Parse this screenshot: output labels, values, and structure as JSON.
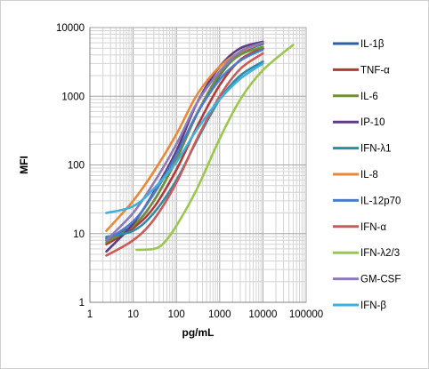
{
  "chart_data": {
    "type": "line",
    "xlabel": "pg/mL",
    "ylabel": "MFI",
    "xscale": "log",
    "yscale": "log",
    "xlim": [
      1,
      100000
    ],
    "ylim": [
      1,
      10000
    ],
    "xticks": [
      "1",
      "10",
      "100",
      "1000",
      "10000",
      "100000"
    ],
    "yticks": [
      "1",
      "10",
      "100",
      "1000",
      "10000"
    ],
    "grid": true,
    "legend_position": "right",
    "series": [
      {
        "name": "IL-1β",
        "color": "#2e5fa3",
        "x": [
          2.4,
          10,
          30,
          100,
          300,
          1000,
          3000,
          10000
        ],
        "y": [
          8.5,
          13,
          30,
          120,
          550,
          2000,
          4200,
          5800
        ]
      },
      {
        "name": "TNF-α",
        "color": "#b03a36",
        "x": [
          2.4,
          10,
          30,
          100,
          300,
          1000,
          3000,
          10000
        ],
        "y": [
          7,
          12,
          24,
          85,
          360,
          1450,
          3400,
          5000
        ]
      },
      {
        "name": "IL-6",
        "color": "#6f8f3b",
        "x": [
          2.4,
          10,
          30,
          100,
          300,
          1000,
          3000,
          10000
        ],
        "y": [
          7.5,
          13,
          30,
          120,
          560,
          2100,
          4000,
          5200
        ]
      },
      {
        "name": "IP-10",
        "color": "#5b3d86",
        "x": [
          2.4,
          10,
          30,
          100,
          300,
          1000,
          3000,
          10000
        ],
        "y": [
          5.5,
          14,
          40,
          160,
          800,
          2700,
          5000,
          6200
        ]
      },
      {
        "name": "IFN-λ1",
        "color": "#2a8da5",
        "x": [
          2.4,
          10,
          30,
          100,
          300,
          1000,
          3000,
          10000
        ],
        "y": [
          9,
          11,
          20,
          60,
          230,
          900,
          2000,
          3200
        ]
      },
      {
        "name": "IL-8",
        "color": "#e8893a",
        "x": [
          2.4,
          10,
          30,
          100,
          300,
          1000,
          3000,
          10000
        ],
        "y": [
          11,
          30,
          80,
          280,
          1050,
          2700,
          4400,
          6000
        ]
      },
      {
        "name": "IL-12p70",
        "color": "#4d7cc4",
        "x": [
          2.4,
          10,
          30,
          100,
          300,
          1000,
          3000,
          10000
        ],
        "y": [
          8,
          15,
          38,
          140,
          560,
          1750,
          3300,
          4800
        ]
      },
      {
        "name": "IFN-α",
        "color": "#cd5a58",
        "x": [
          2.4,
          10,
          30,
          100,
          300,
          1000,
          3000,
          10000
        ],
        "y": [
          4.8,
          8,
          16,
          55,
          240,
          1000,
          2500,
          4200
        ]
      },
      {
        "name": "IFN-λ2/3",
        "color": "#9bc74b",
        "x": [
          12,
          30,
          50,
          100,
          300,
          1000,
          3000,
          10000,
          50000
        ],
        "y": [
          5.8,
          6,
          7.2,
          13,
          45,
          240,
          900,
          2400,
          5600
        ]
      },
      {
        "name": "GM-CSF",
        "color": "#8f7ab8",
        "x": [
          2.4,
          10,
          30,
          100,
          300,
          1000,
          3000,
          10000
        ],
        "y": [
          8,
          20,
          55,
          200,
          800,
          2300,
          4500,
          6000
        ]
      },
      {
        "name": "IFN-β",
        "color": "#3fb0d9",
        "x": [
          2.4,
          10,
          30,
          100,
          300,
          1000,
          3000,
          10000
        ],
        "y": [
          20,
          25,
          45,
          110,
          330,
          900,
          1800,
          3000
        ]
      }
    ]
  }
}
